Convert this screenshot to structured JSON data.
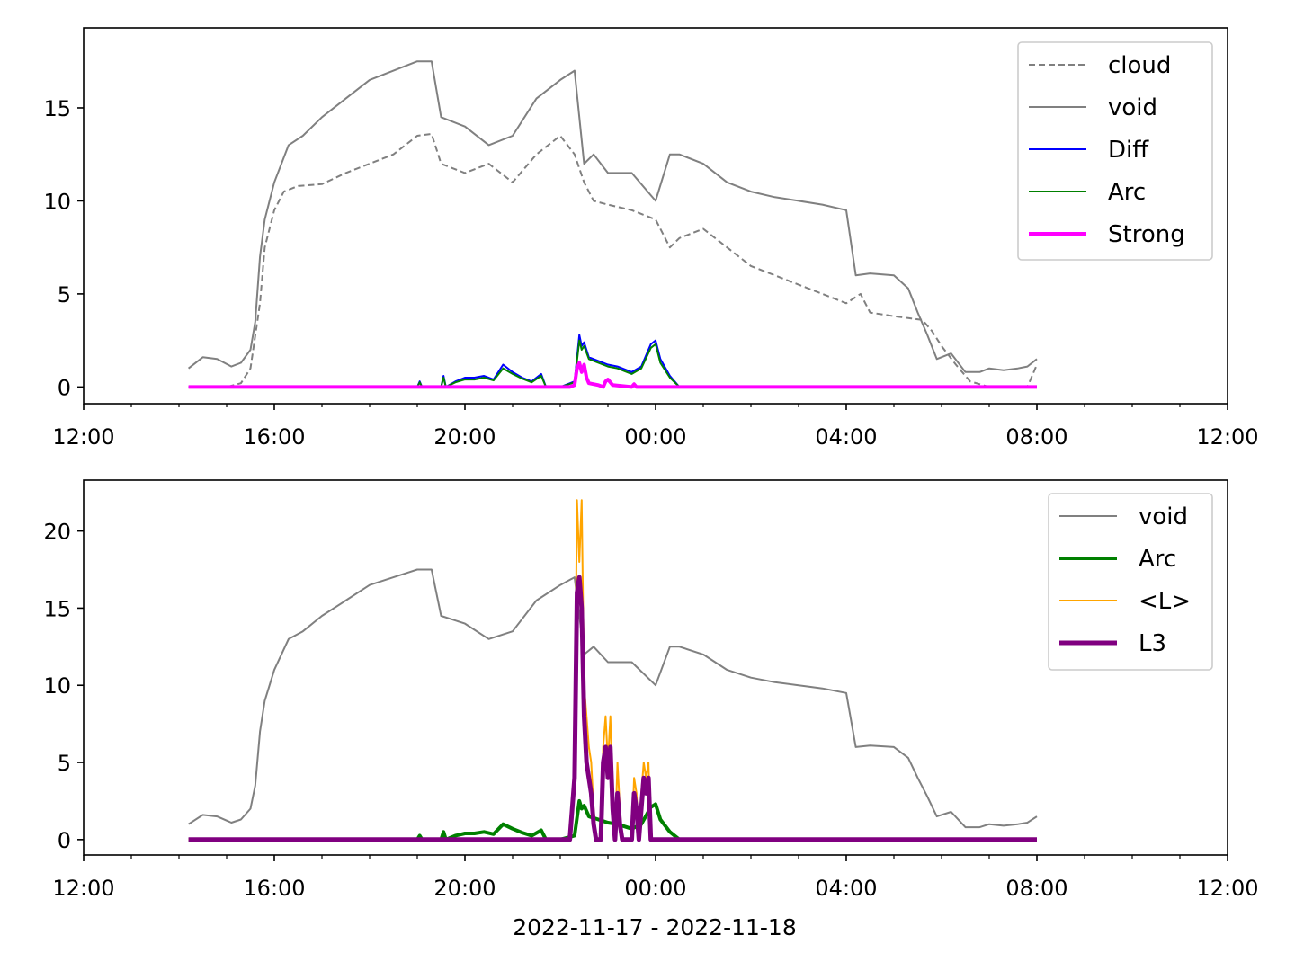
{
  "figure": {
    "xlabel": "2022-11-17 - 2022-11-18"
  },
  "chart_data": [
    {
      "type": "line",
      "x_unit": "hours since 2022-11-17 00:00",
      "xlim": [
        12,
        36
      ],
      "ylim": [
        -0.9,
        19.3
      ],
      "x_ticks": [
        {
          "value": 12,
          "label": "12:00"
        },
        {
          "value": 16,
          "label": "16:00"
        },
        {
          "value": 20,
          "label": "20:00"
        },
        {
          "value": 24,
          "label": "00:00"
        },
        {
          "value": 28,
          "label": "04:00"
        },
        {
          "value": 32,
          "label": "08:00"
        },
        {
          "value": 36,
          "label": "12:00"
        }
      ],
      "y_ticks": [
        0,
        5,
        10,
        15
      ],
      "legend_position": "top-right",
      "series": [
        {
          "name": "cloud",
          "color": "#808080",
          "style": "dashed",
          "width": 2,
          "x": [
            14.2,
            14.5,
            15,
            15.3,
            15.5,
            15.7,
            15.8,
            16,
            16.2,
            16.5,
            17,
            17.5,
            18,
            18.5,
            19,
            19.3,
            19.5,
            20,
            20.5,
            21,
            21.5,
            22,
            22.3,
            22.5,
            22.7,
            23,
            23.5,
            24,
            24.3,
            24.5,
            25,
            25.5,
            26,
            26.5,
            27,
            27.5,
            28,
            28.3,
            28.5,
            29,
            29.3,
            29.6,
            29.8,
            30,
            30.3,
            30.6,
            31,
            31.3,
            31.6,
            31.8,
            32.0
          ],
          "values": [
            0,
            0,
            0,
            0.2,
            1.0,
            4.5,
            7.5,
            9.5,
            10.5,
            10.8,
            10.9,
            11.5,
            12.0,
            12.5,
            13.5,
            13.6,
            12.0,
            11.5,
            12.0,
            11.0,
            12.5,
            13.5,
            12.5,
            11.0,
            10.0,
            9.8,
            9.5,
            9.0,
            7.5,
            8.0,
            8.5,
            7.5,
            6.5,
            6.0,
            5.5,
            5.0,
            4.5,
            5.0,
            4.0,
            3.8,
            3.7,
            3.6,
            3.0,
            2.2,
            1.2,
            0.3,
            0,
            0,
            0,
            0,
            1.2
          ]
        },
        {
          "name": "void",
          "color": "#808080",
          "style": "solid",
          "width": 2,
          "x": [
            14.2,
            14.5,
            14.8,
            15.1,
            15.3,
            15.5,
            15.6,
            15.7,
            15.8,
            16,
            16.3,
            16.6,
            17,
            17.5,
            18,
            18.5,
            19,
            19.3,
            19.5,
            20,
            20.5,
            21,
            21.5,
            22,
            22.3,
            22.5,
            22.7,
            23,
            23.5,
            24,
            24.3,
            24.5,
            25,
            25.5,
            26,
            26.5,
            27,
            27.5,
            28,
            28.2,
            28.5,
            29,
            29.3,
            29.5,
            29.7,
            29.9,
            30.2,
            30.5,
            30.8,
            31,
            31.3,
            31.6,
            31.8,
            32.0
          ],
          "values": [
            1.0,
            1.6,
            1.5,
            1.1,
            1.3,
            2.0,
            3.5,
            7.0,
            9.0,
            11.0,
            13.0,
            13.5,
            14.5,
            15.5,
            16.5,
            17.0,
            17.5,
            17.5,
            14.5,
            14.0,
            13.0,
            13.5,
            15.5,
            16.5,
            17.0,
            12.0,
            12.5,
            11.5,
            11.5,
            10.0,
            12.5,
            12.5,
            12.0,
            11.0,
            10.5,
            10.2,
            10.0,
            9.8,
            9.5,
            6.0,
            6.1,
            6.0,
            5.3,
            4.0,
            2.8,
            1.5,
            1.8,
            0.8,
            0.8,
            1.0,
            0.9,
            1.0,
            1.1,
            1.5
          ]
        },
        {
          "name": "Diff",
          "color": "#0000ff",
          "style": "solid",
          "width": 2,
          "x": [
            14.2,
            19.0,
            19.05,
            19.1,
            19.5,
            19.55,
            19.6,
            19.8,
            20.0,
            20.2,
            20.4,
            20.6,
            20.8,
            21.0,
            21.2,
            21.4,
            21.6,
            21.7,
            21.8,
            22.0,
            22.3,
            22.4,
            22.45,
            22.5,
            22.6,
            22.8,
            23.0,
            23.2,
            23.5,
            23.7,
            23.9,
            24.0,
            24.1,
            24.3,
            24.5,
            24.6,
            32.0
          ],
          "values": [
            0,
            0,
            0.3,
            0,
            0,
            0.6,
            0,
            0.3,
            0.5,
            0.5,
            0.6,
            0.4,
            1.2,
            0.8,
            0.5,
            0.3,
            0.7,
            0,
            0,
            0,
            0.3,
            2.8,
            2.2,
            2.4,
            1.6,
            1.4,
            1.2,
            1.1,
            0.8,
            1.1,
            2.3,
            2.5,
            1.5,
            0.6,
            0,
            0,
            0
          ]
        },
        {
          "name": "Arc",
          "color": "#008000",
          "style": "solid",
          "width": 2,
          "x": [
            14.2,
            19.0,
            19.05,
            19.1,
            19.5,
            19.55,
            19.6,
            19.8,
            20.0,
            20.2,
            20.4,
            20.6,
            20.8,
            21.0,
            21.2,
            21.4,
            21.6,
            21.7,
            21.8,
            22.0,
            22.3,
            22.4,
            22.45,
            22.5,
            22.6,
            22.8,
            23.0,
            23.2,
            23.5,
            23.7,
            23.9,
            24.0,
            24.1,
            24.3,
            24.5,
            24.6,
            32.0
          ],
          "values": [
            0,
            0,
            0.25,
            0,
            0,
            0.5,
            0,
            0.25,
            0.4,
            0.4,
            0.5,
            0.35,
            1.0,
            0.7,
            0.45,
            0.25,
            0.6,
            0,
            0,
            0,
            0.25,
            2.5,
            2.0,
            2.2,
            1.5,
            1.3,
            1.1,
            1.0,
            0.7,
            1.0,
            2.1,
            2.3,
            1.3,
            0.5,
            0,
            0,
            0
          ]
        },
        {
          "name": "Strong",
          "color": "#ff00ff",
          "style": "solid",
          "width": 4,
          "x": [
            14.2,
            22.2,
            22.3,
            22.35,
            22.4,
            22.45,
            22.5,
            22.55,
            22.6,
            22.8,
            22.9,
            22.95,
            23.0,
            23.1,
            23.5,
            23.55,
            23.6,
            32.0
          ],
          "values": [
            0,
            0,
            0.1,
            1.0,
            1.3,
            0.8,
            1.2,
            0.5,
            0.2,
            0.1,
            0,
            0.3,
            0.4,
            0.1,
            0,
            0.15,
            0,
            0
          ]
        }
      ]
    },
    {
      "type": "line",
      "x_unit": "hours since 2022-11-17 00:00",
      "xlim": [
        12,
        36
      ],
      "ylim": [
        -1.0,
        23.3
      ],
      "x_ticks": [
        {
          "value": 12,
          "label": "12:00"
        },
        {
          "value": 16,
          "label": "16:00"
        },
        {
          "value": 20,
          "label": "20:00"
        },
        {
          "value": 24,
          "label": "00:00"
        },
        {
          "value": 28,
          "label": "04:00"
        },
        {
          "value": 32,
          "label": "08:00"
        },
        {
          "value": 36,
          "label": "12:00"
        }
      ],
      "y_ticks": [
        0,
        5,
        10,
        15,
        20
      ],
      "legend_position": "top-right",
      "series": [
        {
          "name": "void",
          "color": "#808080",
          "style": "solid",
          "width": 2,
          "x": [
            14.2,
            14.5,
            14.8,
            15.1,
            15.3,
            15.5,
            15.6,
            15.7,
            15.8,
            16,
            16.3,
            16.6,
            17,
            17.5,
            18,
            18.5,
            19,
            19.3,
            19.5,
            20,
            20.5,
            21,
            21.5,
            22,
            22.3,
            22.5,
            22.7,
            23,
            23.5,
            24,
            24.3,
            24.5,
            25,
            25.5,
            26,
            26.5,
            27,
            27.5,
            28,
            28.2,
            28.5,
            29,
            29.3,
            29.5,
            29.7,
            29.9,
            30.2,
            30.5,
            30.8,
            31,
            31.3,
            31.6,
            31.8,
            32.0
          ],
          "values": [
            1.0,
            1.6,
            1.5,
            1.1,
            1.3,
            2.0,
            3.5,
            7.0,
            9.0,
            11.0,
            13.0,
            13.5,
            14.5,
            15.5,
            16.5,
            17.0,
            17.5,
            17.5,
            14.5,
            14.0,
            13.0,
            13.5,
            15.5,
            16.5,
            17.0,
            12.0,
            12.5,
            11.5,
            11.5,
            10.0,
            12.5,
            12.5,
            12.0,
            11.0,
            10.5,
            10.2,
            10.0,
            9.8,
            9.5,
            6.0,
            6.1,
            6.0,
            5.3,
            4.0,
            2.8,
            1.5,
            1.8,
            0.8,
            0.8,
            1.0,
            0.9,
            1.0,
            1.1,
            1.5
          ]
        },
        {
          "name": "Arc",
          "color": "#008000",
          "style": "solid",
          "width": 4,
          "x": [
            14.2,
            19.0,
            19.05,
            19.1,
            19.5,
            19.55,
            19.6,
            19.8,
            20.0,
            20.2,
            20.4,
            20.6,
            20.8,
            21.0,
            21.2,
            21.4,
            21.6,
            21.7,
            21.8,
            22.0,
            22.3,
            22.4,
            22.45,
            22.5,
            22.6,
            22.8,
            23.0,
            23.2,
            23.5,
            23.7,
            23.9,
            24.0,
            24.1,
            24.3,
            24.5,
            24.6,
            32.0
          ],
          "values": [
            0,
            0,
            0.25,
            0,
            0,
            0.5,
            0,
            0.25,
            0.4,
            0.4,
            0.5,
            0.35,
            1.0,
            0.7,
            0.45,
            0.25,
            0.6,
            0,
            0,
            0,
            0.25,
            2.5,
            2.0,
            2.2,
            1.5,
            1.3,
            1.1,
            1.0,
            0.7,
            1.0,
            2.1,
            2.3,
            1.3,
            0.5,
            0,
            0,
            0
          ]
        },
        {
          "name": "<L>",
          "color": "#ffa500",
          "style": "solid",
          "width": 2,
          "x": [
            14.2,
            22.2,
            22.3,
            22.35,
            22.4,
            22.45,
            22.5,
            22.55,
            22.6,
            22.65,
            22.7,
            22.75,
            22.8,
            22.85,
            22.9,
            22.95,
            23.0,
            23.05,
            23.1,
            23.15,
            23.2,
            23.25,
            23.3,
            23.4,
            23.5,
            23.55,
            23.6,
            23.65,
            23.7,
            23.75,
            23.8,
            23.85,
            23.9,
            23.95,
            24.0,
            32.0
          ],
          "values": [
            0,
            0,
            5,
            22,
            18,
            22,
            10,
            8,
            6,
            5,
            2,
            0,
            0,
            0,
            6,
            8,
            5,
            8,
            3,
            0,
            5,
            2,
            0,
            0,
            0,
            4,
            3,
            0,
            3,
            5,
            4,
            5,
            0,
            0,
            0,
            0
          ]
        },
        {
          "name": "L3",
          "color": "#800080",
          "style": "solid",
          "width": 5,
          "x": [
            14.2,
            22.2,
            22.3,
            22.35,
            22.4,
            22.45,
            22.5,
            22.55,
            22.6,
            22.65,
            22.7,
            22.75,
            22.8,
            22.85,
            22.9,
            22.95,
            23.0,
            23.05,
            23.1,
            23.15,
            23.2,
            23.25,
            23.3,
            23.4,
            23.5,
            23.55,
            23.6,
            23.65,
            23.7,
            23.75,
            23.8,
            23.85,
            23.9,
            23.95,
            24.0,
            32.0
          ],
          "values": [
            0,
            0,
            4,
            16,
            17,
            15,
            8,
            5,
            4,
            3,
            1,
            0,
            0,
            0,
            5,
            6,
            4,
            6,
            2,
            0,
            3,
            1,
            0,
            0,
            0,
            3,
            2,
            0,
            2,
            4,
            3,
            4,
            0,
            0,
            0,
            0
          ]
        }
      ]
    }
  ]
}
